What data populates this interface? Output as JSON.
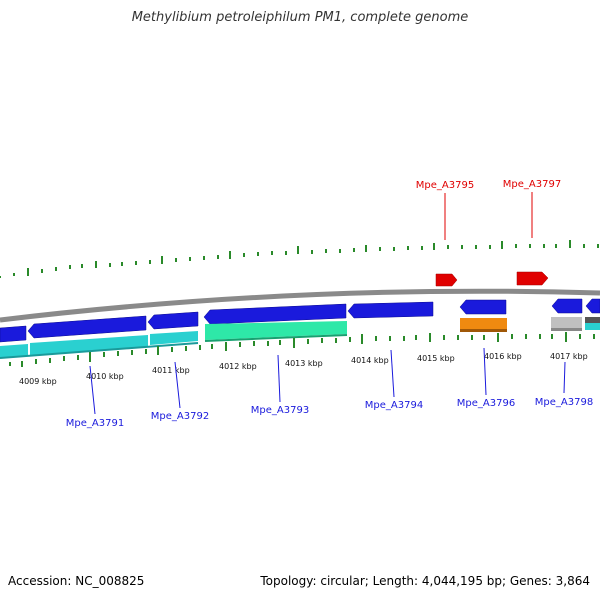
{
  "title": "Methylibium petroleiphilum PM1, complete genome",
  "footer": {
    "accession": "Accession: NC_008825",
    "summary": "Topology: circular; Length: 4,044,195 bp; Genes: 3,864"
  },
  "colors": {
    "forward_gene": "#e00000",
    "reverse_gene": "#1a1adc",
    "backbone": "#8a8a8a",
    "tick": "#2a8a2a",
    "label_red": "#e00000",
    "label_blue": "#1a1adc",
    "cyan_feature": "#2ad0d0",
    "green_feature": "#2ee8a8",
    "orange_feature": "#f08a10",
    "gray_feature": "#c0c0c0"
  },
  "kbp_labels": [
    "4009 kbp",
    "4010 kbp",
    "4011 kbp",
    "4012 kbp",
    "4013 kbp",
    "4014 kbp",
    "4015 kbp",
    "4016 kbp",
    "4017 kbp"
  ],
  "gene_labels_top": [
    "Mpe_A3795",
    "Mpe_A3797"
  ],
  "gene_labels_bottom": [
    "Mpe_A3791",
    "Mpe_A3792",
    "Mpe_A3793",
    "Mpe_A3794",
    "Mpe_A3796",
    "Mpe_A3798"
  ]
}
